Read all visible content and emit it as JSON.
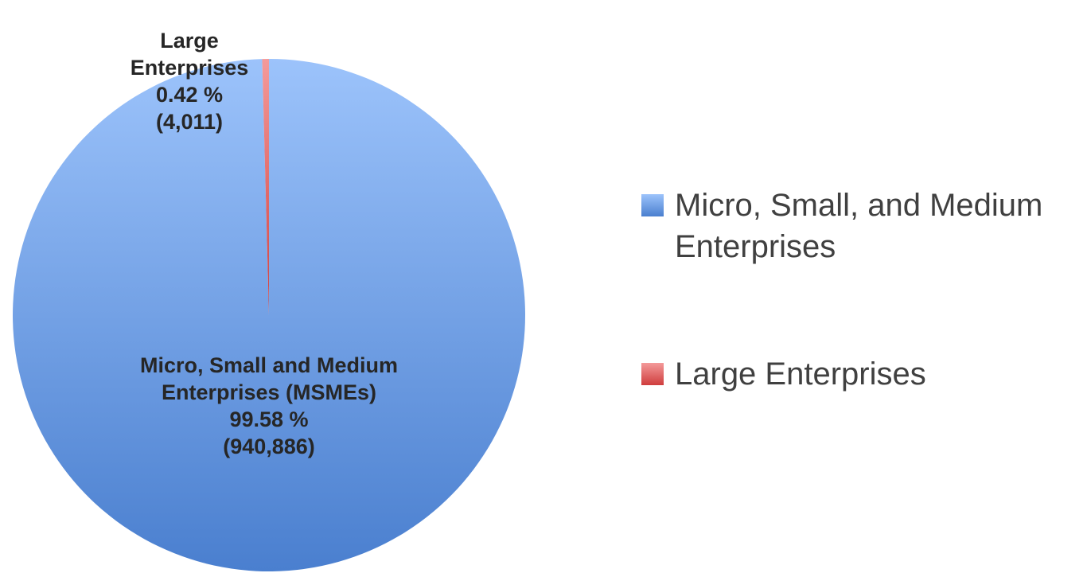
{
  "chart_data": {
    "type": "pie",
    "slices": [
      {
        "name": "Micro, Small, and Medium Enterprises",
        "value": 940886,
        "percent": 99.58,
        "color": "#4f86d4",
        "data_label": [
          "Micro, Small and Medium",
          "Enterprises (MSMEs)",
          "99.58 %",
          "(940,886)"
        ]
      },
      {
        "name": "Large Enterprises",
        "value": 4011,
        "percent": 0.42,
        "color": "#e05c5c",
        "data_label": [
          "Large",
          "Enterprises",
          "0.42 %",
          "(4,011)"
        ]
      }
    ],
    "legend": {
      "position": "right",
      "items": [
        [
          "Micro, Small, and Medium",
          "Enterprises"
        ],
        [
          "Large Enterprises"
        ]
      ]
    }
  }
}
